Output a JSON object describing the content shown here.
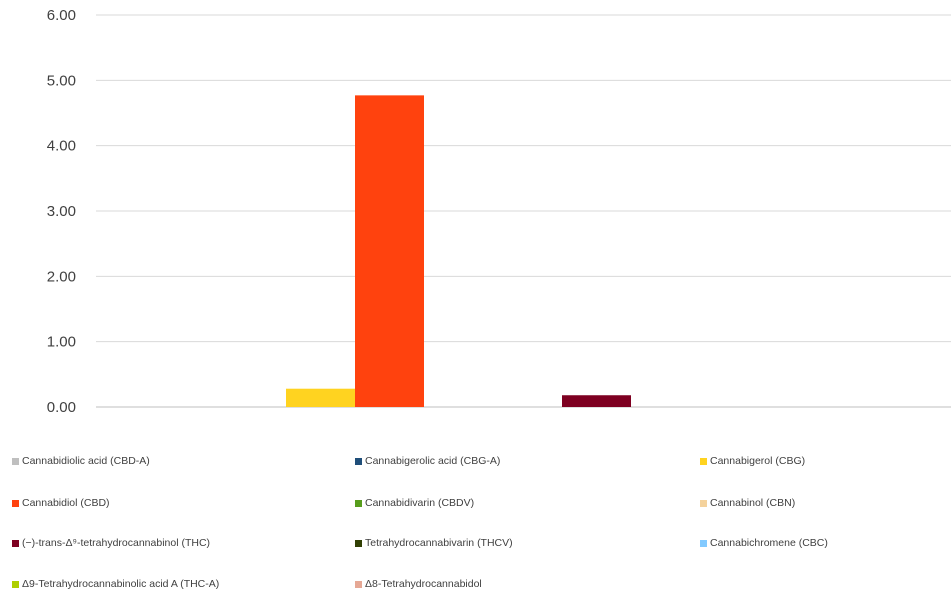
{
  "chart_data": {
    "type": "bar",
    "ylim": [
      0,
      6
    ],
    "ytick_labels": [
      "0.00",
      "1.00",
      "2.00",
      "3.00",
      "4.00",
      "5.00",
      "6.00"
    ],
    "yticks": [
      0,
      1,
      2,
      3,
      4,
      5,
      6
    ],
    "grid": true,
    "legend_position": "bottom",
    "series": [
      {
        "name": "Cannabidiolic acid (CBD-A)",
        "value": 0,
        "color": "#bfbfbf"
      },
      {
        "name": "Cannabigerolic acid (CBG-A)",
        "value": 0,
        "color": "#1f4e79"
      },
      {
        "name": "Cannabigerol (CBG)",
        "value": 0.28,
        "color": "#ffd320"
      },
      {
        "name": "Cannabidiol (CBD)",
        "value": 4.77,
        "color": "#ff420e"
      },
      {
        "name": "Cannabidivarin (CBDV)",
        "value": 0,
        "color": "#579d1c"
      },
      {
        "name": "Cannabinol (CBN)",
        "value": 0,
        "color": "#f4d29c"
      },
      {
        "name": "(−)-trans-Δ⁹-tetrahydrocannabinol (THC)",
        "value": 0.18,
        "color": "#7e0021"
      },
      {
        "name": "Tetrahydrocannabivarin (THCV)",
        "value": 0,
        "color": "#314004"
      },
      {
        "name": "Cannabichromene (CBC)",
        "value": 0,
        "color": "#83caff"
      },
      {
        "name": "Δ9-Tetrahydrocannabinolic acid A (THC-A)",
        "value": 0,
        "color": "#aecf00"
      },
      {
        "name": "Δ8-Tetrahydrocannabidol",
        "value": 0,
        "color": "#e6a895"
      }
    ]
  }
}
